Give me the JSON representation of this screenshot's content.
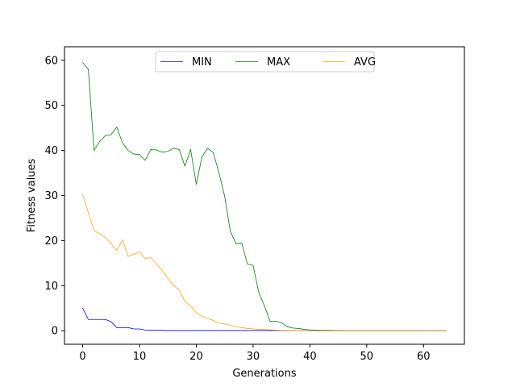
{
  "chart_data": {
    "type": "line",
    "title": "",
    "xlabel": "Generations",
    "ylabel": "Fitness values",
    "xlim": [
      -3.2,
      67.2
    ],
    "ylim": [
      -3,
      63
    ],
    "xticks": [
      0,
      10,
      20,
      30,
      40,
      50,
      60
    ],
    "yticks": [
      0,
      10,
      20,
      30,
      40,
      50,
      60
    ],
    "grid": false,
    "legend": {
      "placement": "upper center",
      "columns": 3
    },
    "x": [
      0,
      1,
      2,
      3,
      4,
      5,
      6,
      7,
      8,
      9,
      10,
      11,
      12,
      13,
      14,
      15,
      16,
      17,
      18,
      19,
      20,
      21,
      22,
      23,
      24,
      25,
      26,
      27,
      28,
      29,
      30,
      31,
      32,
      33,
      34,
      35,
      36,
      37,
      38,
      39,
      40,
      41,
      42,
      43,
      44,
      45,
      46,
      47,
      48,
      49,
      50,
      51,
      52,
      53,
      54,
      55,
      56,
      57,
      58,
      59,
      60,
      61,
      62,
      63,
      64
    ],
    "series": [
      {
        "name": "MIN",
        "color": "#0000ff",
        "values": [
          5,
          2.5,
          2.5,
          2.5,
          2.5,
          2,
          0.7,
          0.7,
          0.7,
          0.4,
          0.4,
          0.15,
          0.1,
          0.1,
          0.1,
          0.05,
          0.05,
          0.05,
          0.05,
          0.05,
          0.05,
          0.05,
          0.05,
          0.05,
          0.05,
          0.05,
          0.05,
          0.05,
          0.05,
          0.05,
          0.05,
          0.05,
          0.05,
          0.05,
          0.05,
          0.05,
          0.05,
          0.05,
          0.05,
          0,
          0,
          0,
          0,
          0,
          0,
          0,
          0,
          0,
          0,
          0,
          0,
          0,
          0,
          0,
          0,
          0,
          0,
          0,
          0,
          0,
          0,
          0,
          0,
          0,
          0
        ]
      },
      {
        "name": "MAX",
        "color": "#008000",
        "values": [
          59.5,
          58,
          40,
          42,
          43.3,
          43.5,
          45.2,
          41.7,
          40,
          39.2,
          39.1,
          37.8,
          40.2,
          40.1,
          39.6,
          39.8,
          40.5,
          40.2,
          36.5,
          40.2,
          32.5,
          38.6,
          40.5,
          39.5,
          35,
          29.8,
          22,
          19.3,
          19.5,
          14.8,
          14.5,
          8.5,
          5.5,
          2.1,
          2.1,
          1.8,
          0.9,
          0.6,
          0.5,
          0.3,
          0.2,
          0.15,
          0.1,
          0.1,
          0.05,
          0.05,
          0,
          0,
          0,
          0,
          0,
          0,
          0,
          0,
          0,
          0,
          0,
          0,
          0,
          0,
          0,
          0,
          0,
          0,
          0
        ]
      },
      {
        "name": "AVG",
        "color": "#ffa500",
        "values": [
          30.3,
          26.2,
          22.2,
          21.5,
          20.7,
          19.3,
          17.8,
          20.2,
          16.5,
          17,
          17.5,
          16,
          16.2,
          14.8,
          13.4,
          11.6,
          10.1,
          9,
          6.5,
          5.5,
          4,
          3.2,
          2.7,
          2.3,
          1.7,
          1.5,
          1.2,
          0.9,
          0.7,
          0.5,
          0.4,
          0.3,
          0.25,
          0.2,
          0.15,
          0.1,
          0.1,
          0.05,
          0.05,
          0,
          0,
          0,
          0,
          0,
          0,
          0,
          0,
          0,
          0,
          0,
          0,
          0,
          0,
          0,
          0,
          0,
          0,
          0,
          0,
          0,
          0,
          0,
          0,
          0,
          0
        ]
      }
    ]
  }
}
